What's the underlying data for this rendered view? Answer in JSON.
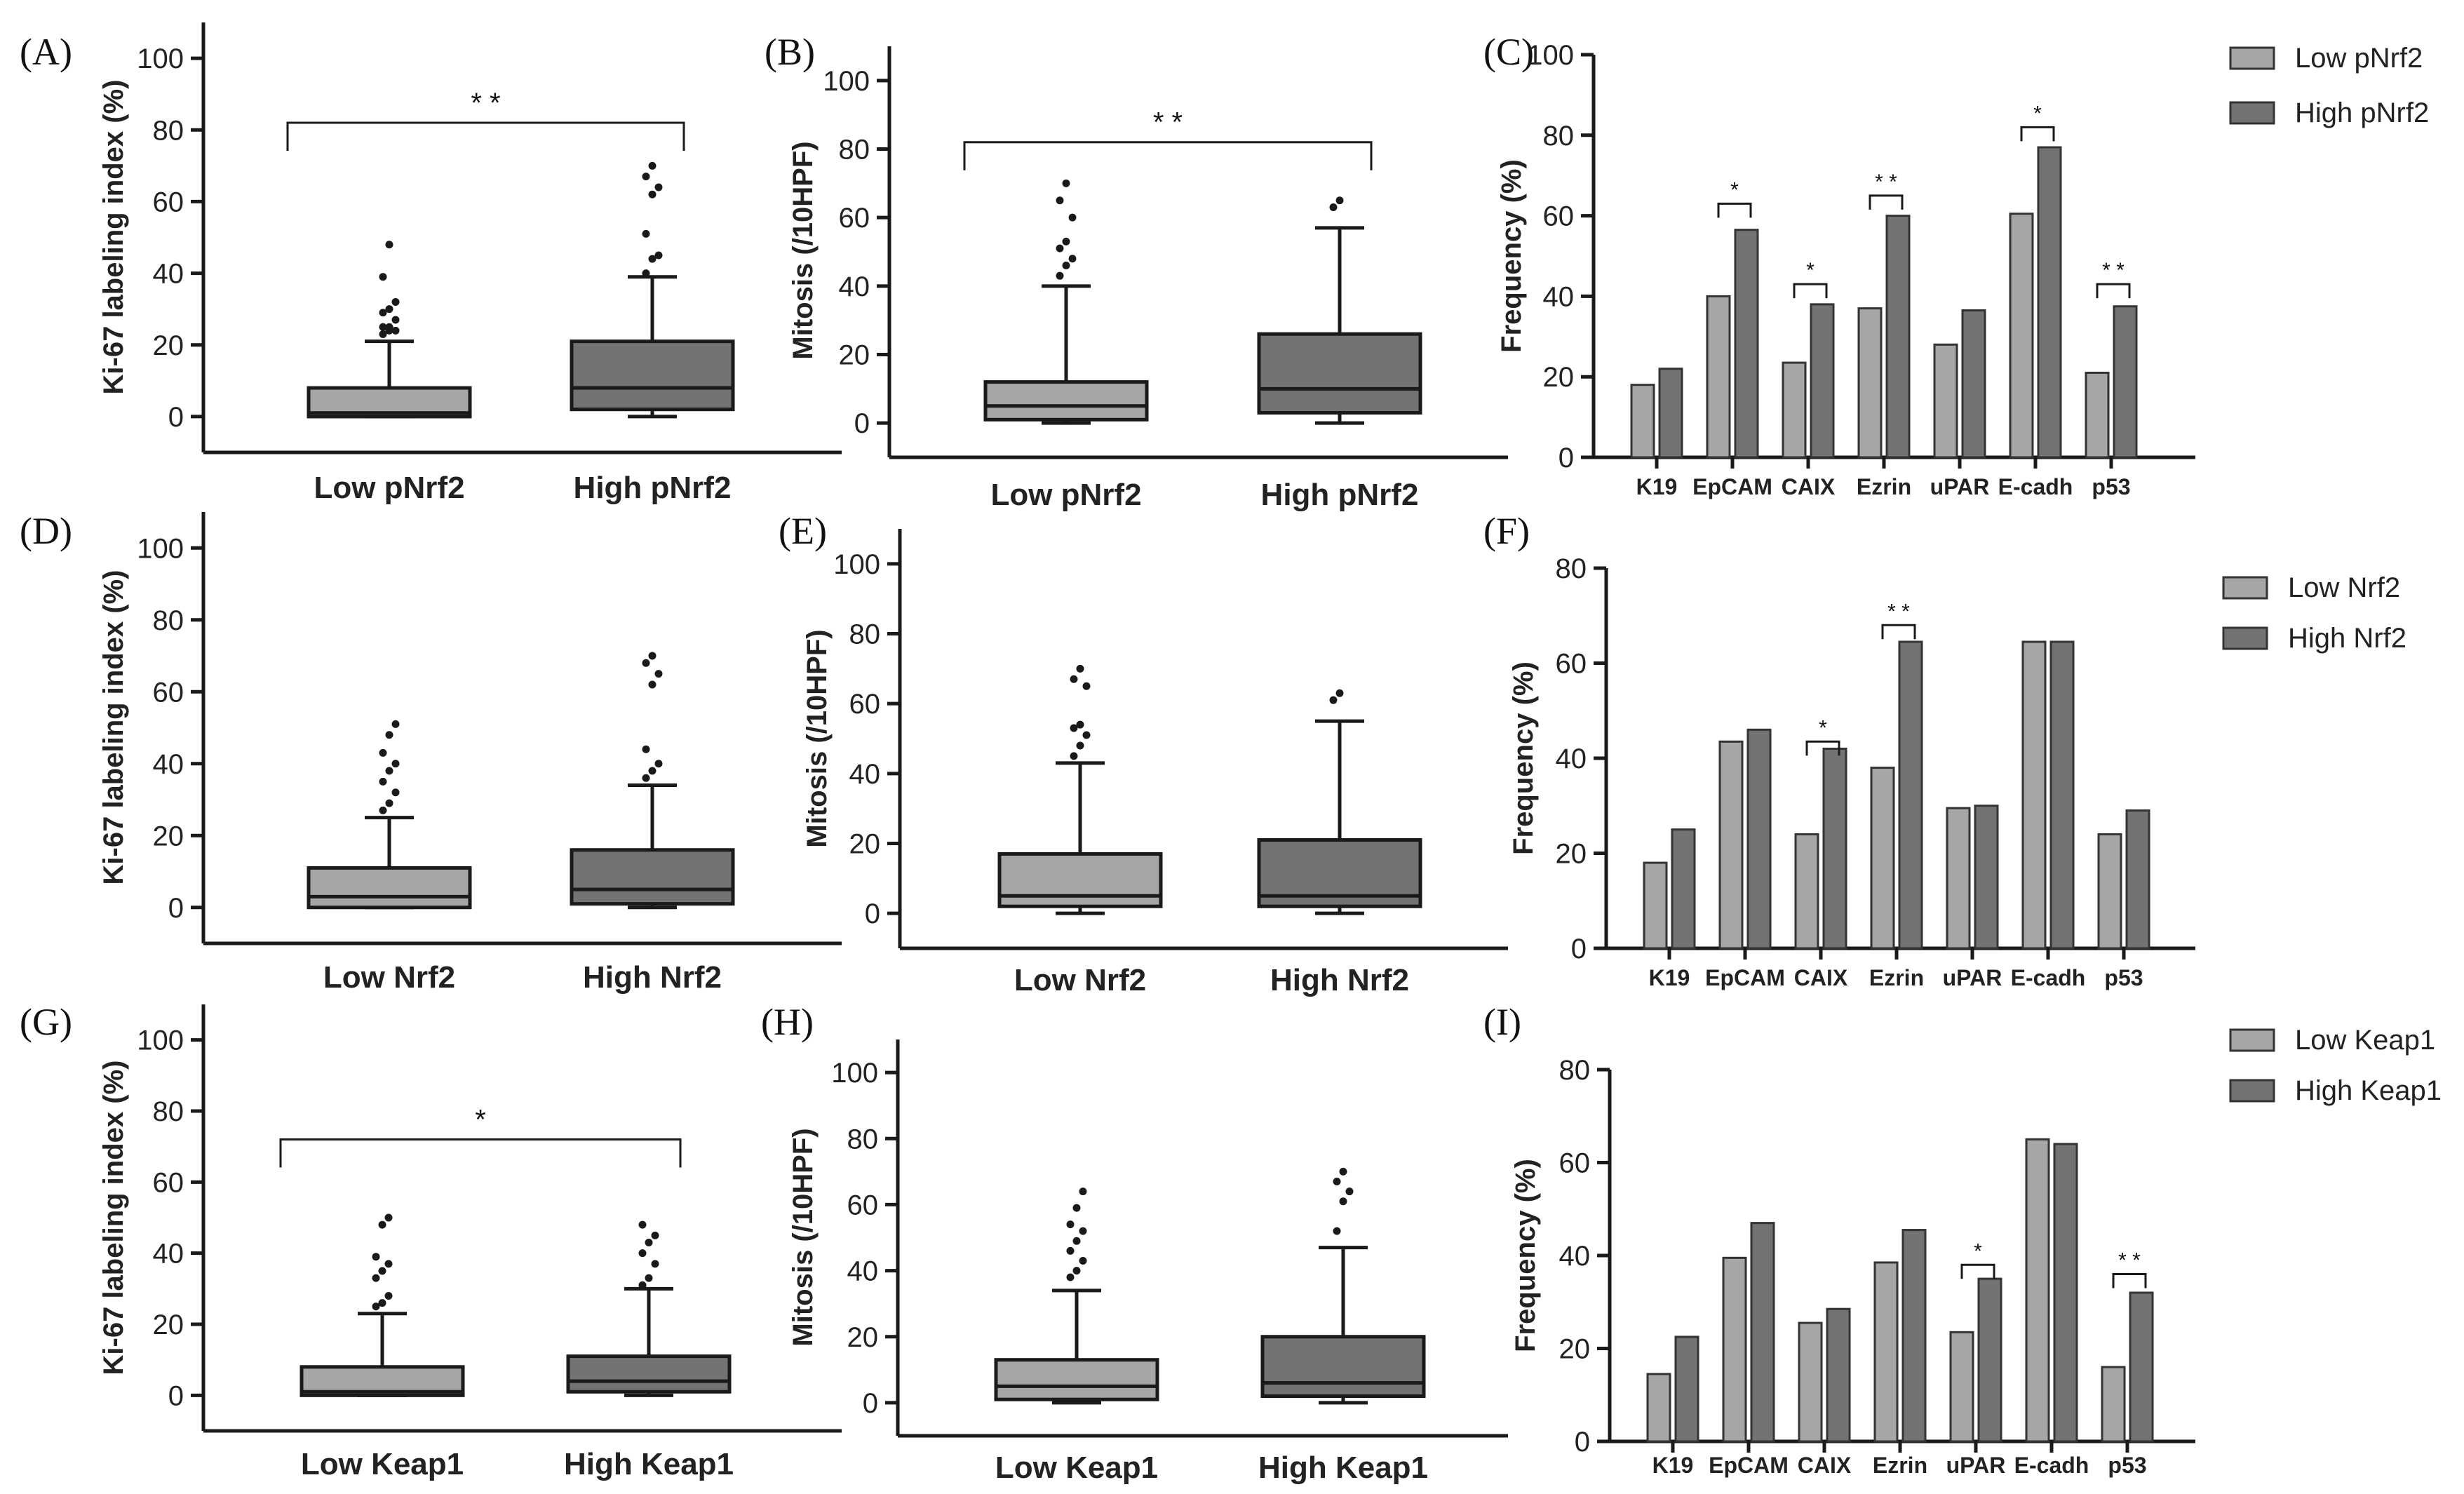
{
  "figure": {
    "colors": {
      "low": "#a6a6a6",
      "high": "#737373",
      "line": "#1a1a1a"
    }
  },
  "chart_data": [
    {
      "panel": "(A)",
      "type": "box",
      "ylabel": "Ki-67 labeling index (%)",
      "ylim": [
        -10,
        110
      ],
      "yticks": [
        0,
        20,
        40,
        60,
        80,
        100
      ],
      "categories": [
        "Low pNrf2",
        "High pNrf2"
      ],
      "boxes": [
        {
          "min": 0,
          "q1": 0,
          "median": 1,
          "q3": 8,
          "whisker_high": 21,
          "outliers": [
            23,
            24,
            24,
            25,
            25,
            27,
            29,
            30,
            32,
            39,
            48
          ]
        },
        {
          "min": 0,
          "q1": 2,
          "median": 8,
          "q3": 21,
          "whisker_high": 39,
          "outliers": [
            40,
            44,
            45,
            51,
            62,
            64,
            67,
            70
          ]
        }
      ],
      "significance": [
        {
          "label": "* *",
          "level": 82
        }
      ]
    },
    {
      "panel": "(B)",
      "type": "box",
      "ylabel": "Mitosis (/10HPF)",
      "ylim": [
        -10,
        110
      ],
      "yticks": [
        0,
        20,
        40,
        60,
        80,
        100
      ],
      "categories": [
        "Low pNrf2",
        "High pNrf2"
      ],
      "boxes": [
        {
          "min": 0,
          "q1": 1,
          "median": 5,
          "q3": 12,
          "whisker_high": 40,
          "outliers": [
            43,
            46,
            48,
            51,
            53,
            60,
            65,
            70
          ]
        },
        {
          "min": 0,
          "q1": 3,
          "median": 10,
          "q3": 26,
          "whisker_high": 57,
          "outliers": [
            63,
            65
          ]
        }
      ],
      "significance": [
        {
          "label": "* *",
          "level": 82
        }
      ]
    },
    {
      "panel": "(C)",
      "type": "bar",
      "ylabel": "Frequency (%)",
      "ylim": [
        0,
        100
      ],
      "yticks": [
        0,
        20,
        40,
        60,
        80,
        100
      ],
      "categories": [
        "K19",
        "EpCAM",
        "CAIX",
        "Ezrin",
        "uPAR",
        "E-cadh",
        "p53"
      ],
      "series": [
        {
          "name": "Low pNrf2",
          "values": [
            18,
            40,
            23.5,
            37,
            28,
            60.5,
            21
          ]
        },
        {
          "name": "High pNrf2",
          "values": [
            22,
            56.5,
            38,
            60,
            36.5,
            77,
            37.5
          ]
        }
      ],
      "significance": [
        {
          "category": 1,
          "label": "*",
          "level": 63
        },
        {
          "category": 2,
          "label": "*",
          "level": 43
        },
        {
          "category": 3,
          "label": "* *",
          "level": 65
        },
        {
          "category": 5,
          "label": "*",
          "level": 82
        },
        {
          "category": 6,
          "label": "* *",
          "level": 43
        }
      ]
    },
    {
      "panel": "(D)",
      "type": "box",
      "ylabel": "Ki-67 labeling index (%)",
      "ylim": [
        -10,
        110
      ],
      "yticks": [
        0,
        20,
        40,
        60,
        80,
        100
      ],
      "categories": [
        "Low Nrf2",
        "High Nrf2"
      ],
      "boxes": [
        {
          "min": 0,
          "q1": 0,
          "median": 3,
          "q3": 11,
          "whisker_high": 25,
          "outliers": [
            27,
            29,
            32,
            35,
            38,
            40,
            43,
            48,
            51
          ]
        },
        {
          "min": 0,
          "q1": 1,
          "median": 5,
          "q3": 16,
          "whisker_high": 34,
          "outliers": [
            36,
            38,
            40,
            44,
            62,
            65,
            68,
            70
          ]
        }
      ],
      "significance": []
    },
    {
      "panel": "(E)",
      "type": "box",
      "ylabel": "Mitosis (/10HPF)",
      "ylim": [
        -10,
        110
      ],
      "yticks": [
        0,
        20,
        40,
        60,
        80,
        100
      ],
      "categories": [
        "Low Nrf2",
        "High Nrf2"
      ],
      "boxes": [
        {
          "min": 0,
          "q1": 2,
          "median": 5,
          "q3": 17,
          "whisker_high": 43,
          "outliers": [
            45,
            48,
            51,
            53,
            54,
            65,
            67,
            70
          ]
        },
        {
          "min": 0,
          "q1": 2,
          "median": 5,
          "q3": 21,
          "whisker_high": 55,
          "outliers": [
            61,
            63
          ]
        }
      ],
      "significance": []
    },
    {
      "panel": "(F)",
      "type": "bar",
      "ylabel": "Frequency (%)",
      "ylim": [
        0,
        80
      ],
      "yticks": [
        0,
        20,
        40,
        60,
        80
      ],
      "categories": [
        "K19",
        "EpCAM",
        "CAIX",
        "Ezrin",
        "uPAR",
        "E-cadh",
        "p53"
      ],
      "series": [
        {
          "name": "Low Nrf2",
          "values": [
            18,
            43.5,
            24,
            38,
            29.5,
            64.5,
            24
          ]
        },
        {
          "name": "High Nrf2",
          "values": [
            25,
            46,
            42,
            64.5,
            30,
            64.5,
            29
          ]
        }
      ],
      "significance": [
        {
          "category": 2,
          "label": "*",
          "level": 43.5
        },
        {
          "category": 3,
          "label": "* *",
          "level": 68
        }
      ]
    },
    {
      "panel": "(G)",
      "type": "box",
      "ylabel": "Ki-67 labeling index (%)",
      "ylim": [
        -10,
        110
      ],
      "yticks": [
        0,
        20,
        40,
        60,
        80,
        100
      ],
      "categories": [
        "Low Keap1",
        "High Keap1"
      ],
      "boxes": [
        {
          "min": 0,
          "q1": 0,
          "median": 1,
          "q3": 8,
          "whisker_high": 23,
          "outliers": [
            25,
            26,
            28,
            33,
            35,
            37,
            39,
            48,
            50
          ]
        },
        {
          "min": 0,
          "q1": 1,
          "median": 4,
          "q3": 11,
          "whisker_high": 30,
          "outliers": [
            31,
            33,
            37,
            40,
            43,
            45,
            48
          ]
        }
      ],
      "significance": [
        {
          "label": "*",
          "level": 72
        }
      ]
    },
    {
      "panel": "(H)",
      "type": "box",
      "ylabel": "Mitosis (/10HPF)",
      "ylim": [
        -10,
        110
      ],
      "yticks": [
        0,
        20,
        40,
        60,
        80,
        100
      ],
      "categories": [
        "Low Keap1",
        "High Keap1"
      ],
      "boxes": [
        {
          "min": 0,
          "q1": 1,
          "median": 5,
          "q3": 13,
          "whisker_high": 34,
          "outliers": [
            38,
            40,
            43,
            46,
            49,
            52,
            54,
            59,
            64
          ]
        },
        {
          "min": 0,
          "q1": 2,
          "median": 6,
          "q3": 20,
          "whisker_high": 47,
          "outliers": [
            52,
            61,
            64,
            67,
            70
          ]
        }
      ],
      "significance": []
    },
    {
      "panel": "(I)",
      "type": "bar",
      "ylabel": "Frequency (%)",
      "ylim": [
        0,
        80
      ],
      "yticks": [
        0,
        20,
        40,
        60,
        80
      ],
      "categories": [
        "K19",
        "EpCAM",
        "CAIX",
        "Ezrin",
        "uPAR",
        "E-cadh",
        "p53"
      ],
      "series": [
        {
          "name": "Low Keap1",
          "values": [
            14.5,
            39.5,
            25.5,
            38.5,
            23.5,
            65,
            16
          ]
        },
        {
          "name": "High Keap1",
          "values": [
            22.5,
            47,
            28.5,
            45.5,
            35,
            64,
            32
          ]
        }
      ],
      "significance": [
        {
          "category": 4,
          "label": "*",
          "level": 38
        },
        {
          "category": 6,
          "label": "* *",
          "level": 36
        }
      ]
    }
  ]
}
